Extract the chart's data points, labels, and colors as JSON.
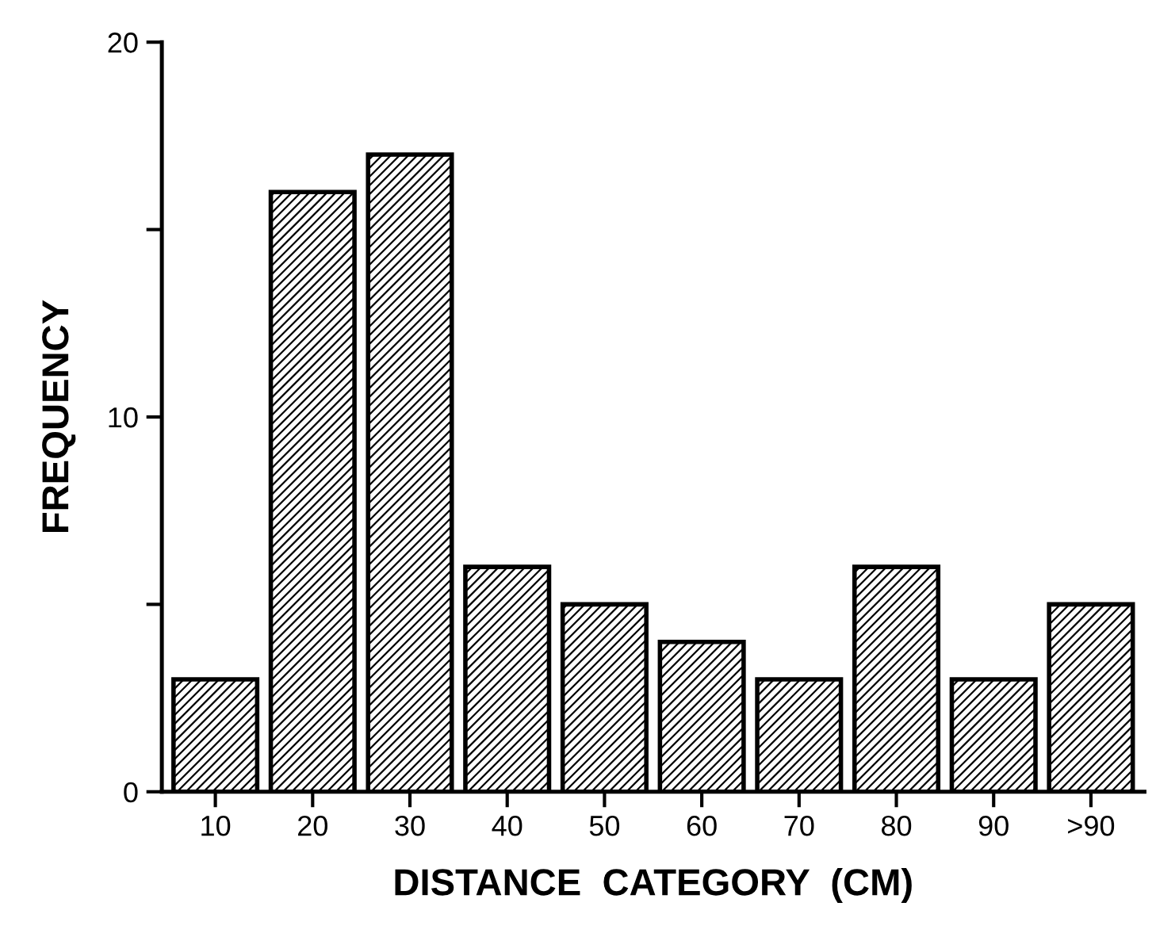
{
  "chart_data": {
    "type": "bar",
    "xlabel": "DISTANCE  CATEGORY  (CM)",
    "ylabel": "FREQUENCY",
    "categories": [
      "10",
      "20",
      "30",
      "40",
      "50",
      "60",
      "70",
      "80",
      "90",
      ">90"
    ],
    "values": [
      3,
      16,
      17,
      6,
      5,
      4,
      3,
      6,
      3,
      5
    ],
    "color": "#000000",
    "ylim": [
      0,
      20
    ],
    "yticks": [
      0,
      {
        "value": 5,
        "label": null
      },
      10,
      {
        "value": 15,
        "label": null
      },
      20
    ],
    "grid": false,
    "legend": false
  }
}
